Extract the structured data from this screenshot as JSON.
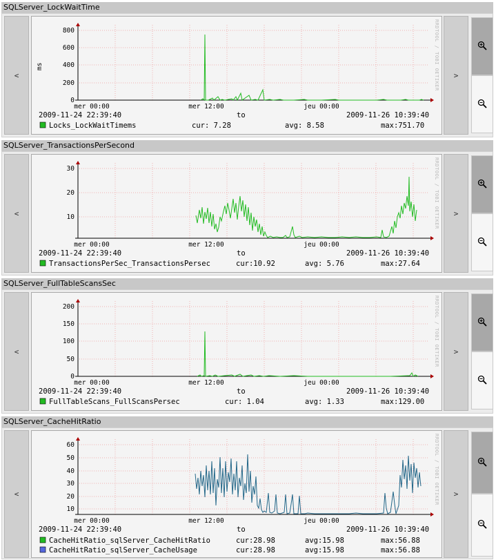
{
  "nav": {
    "prev_label": "<",
    "next_label": ">"
  },
  "watermark": "RRDTOOL / TOBI OETIKER",
  "panels": [
    {
      "title": "SQLServer_LockWaitTime",
      "ylabel": "ms",
      "y_ticks": [
        "0",
        "200",
        "400",
        "600",
        "800"
      ],
      "x_ticks": [
        "mer 00:00",
        "mer 12:00",
        "jeu 00:00"
      ],
      "range_start": "2009-11-24 22:39:40",
      "range_to": "to",
      "range_end": "2009-11-26 10:39:40",
      "legend": [
        {
          "swatch": "#22bb22",
          "name": "Locks_LockWaitTimems",
          "cur": "cur: 7.28",
          "avg": "avg: 8.58",
          "max": "max:751.70"
        }
      ]
    },
    {
      "title": "SQLServer_TransactionsPerSecond",
      "ylabel": "",
      "y_ticks": [
        "10",
        "20",
        "30"
      ],
      "x_ticks": [
        "mer 00:00",
        "mer 12:00",
        "jeu 00:00"
      ],
      "range_start": "2009-11-24 22:39:40",
      "range_to": "to",
      "range_end": "2009-11-26 10:39:40",
      "legend": [
        {
          "swatch": "#22bb22",
          "name": "TransactionsPerSec_TransactionsPersec",
          "cur": "cur:10.92",
          "avg": "avg: 5.76",
          "max": "max:27.64"
        }
      ]
    },
    {
      "title": "SQLServer_FullTableScansSec",
      "ylabel": "",
      "y_ticks": [
        "0",
        "50",
        "100",
        "150",
        "200"
      ],
      "x_ticks": [
        "mer 00:00",
        "mer 12:00",
        "jeu 00:00"
      ],
      "range_start": "2009-11-24 22:39:40",
      "range_to": "to",
      "range_end": "2009-11-26 10:39:40",
      "legend": [
        {
          "swatch": "#22bb22",
          "name": "FullTableScans_FullScansPersec",
          "cur": "cur: 1.04",
          "avg": "avg: 1.33",
          "max": "max:129.00"
        }
      ]
    },
    {
      "title": "SQLServer_CacheHitRatio",
      "ylabel": "",
      "y_ticks": [
        "10",
        "20",
        "30",
        "40",
        "50",
        "60"
      ],
      "x_ticks": [
        "mer 00:00",
        "mer 12:00",
        "jeu 00:00"
      ],
      "range_start": "2009-11-24 22:39:40",
      "range_to": "to",
      "range_end": "2009-11-26 10:39:40",
      "legend": [
        {
          "swatch": "#22bb22",
          "name": "CacheHitRatio_sqlServer_CacheHitRatio",
          "cur": "cur:28.98",
          "avg": "avg:15.98",
          "max": "max:56.88"
        },
        {
          "swatch": "#5566dd",
          "name": "CacheHitRatio_sqlServer_CacheUsage",
          "cur": "cur:28.98",
          "avg": "avg:15.98",
          "max": "max:56.88"
        }
      ]
    }
  ]
}
